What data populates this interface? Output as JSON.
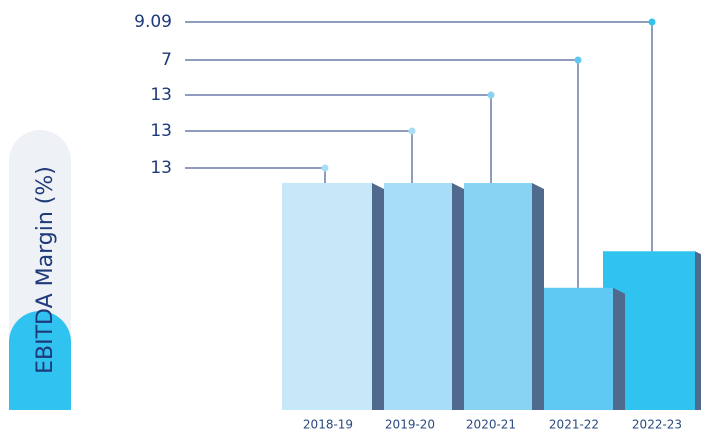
{
  "chart_data": {
    "type": "bar",
    "y_label": "EBITDA Margin (%)",
    "categories": [
      "2018-19",
      "2019-20",
      "2020-21",
      "2021-22",
      "2022-23"
    ],
    "values": [
      13,
      13,
      13,
      7,
      9.09
    ],
    "colors": [
      "#c6e8f9",
      "#a8ddf7",
      "#88d3f4",
      "#5fc9f3",
      "#30c3f0"
    ],
    "ylim": [
      0,
      13
    ]
  }
}
